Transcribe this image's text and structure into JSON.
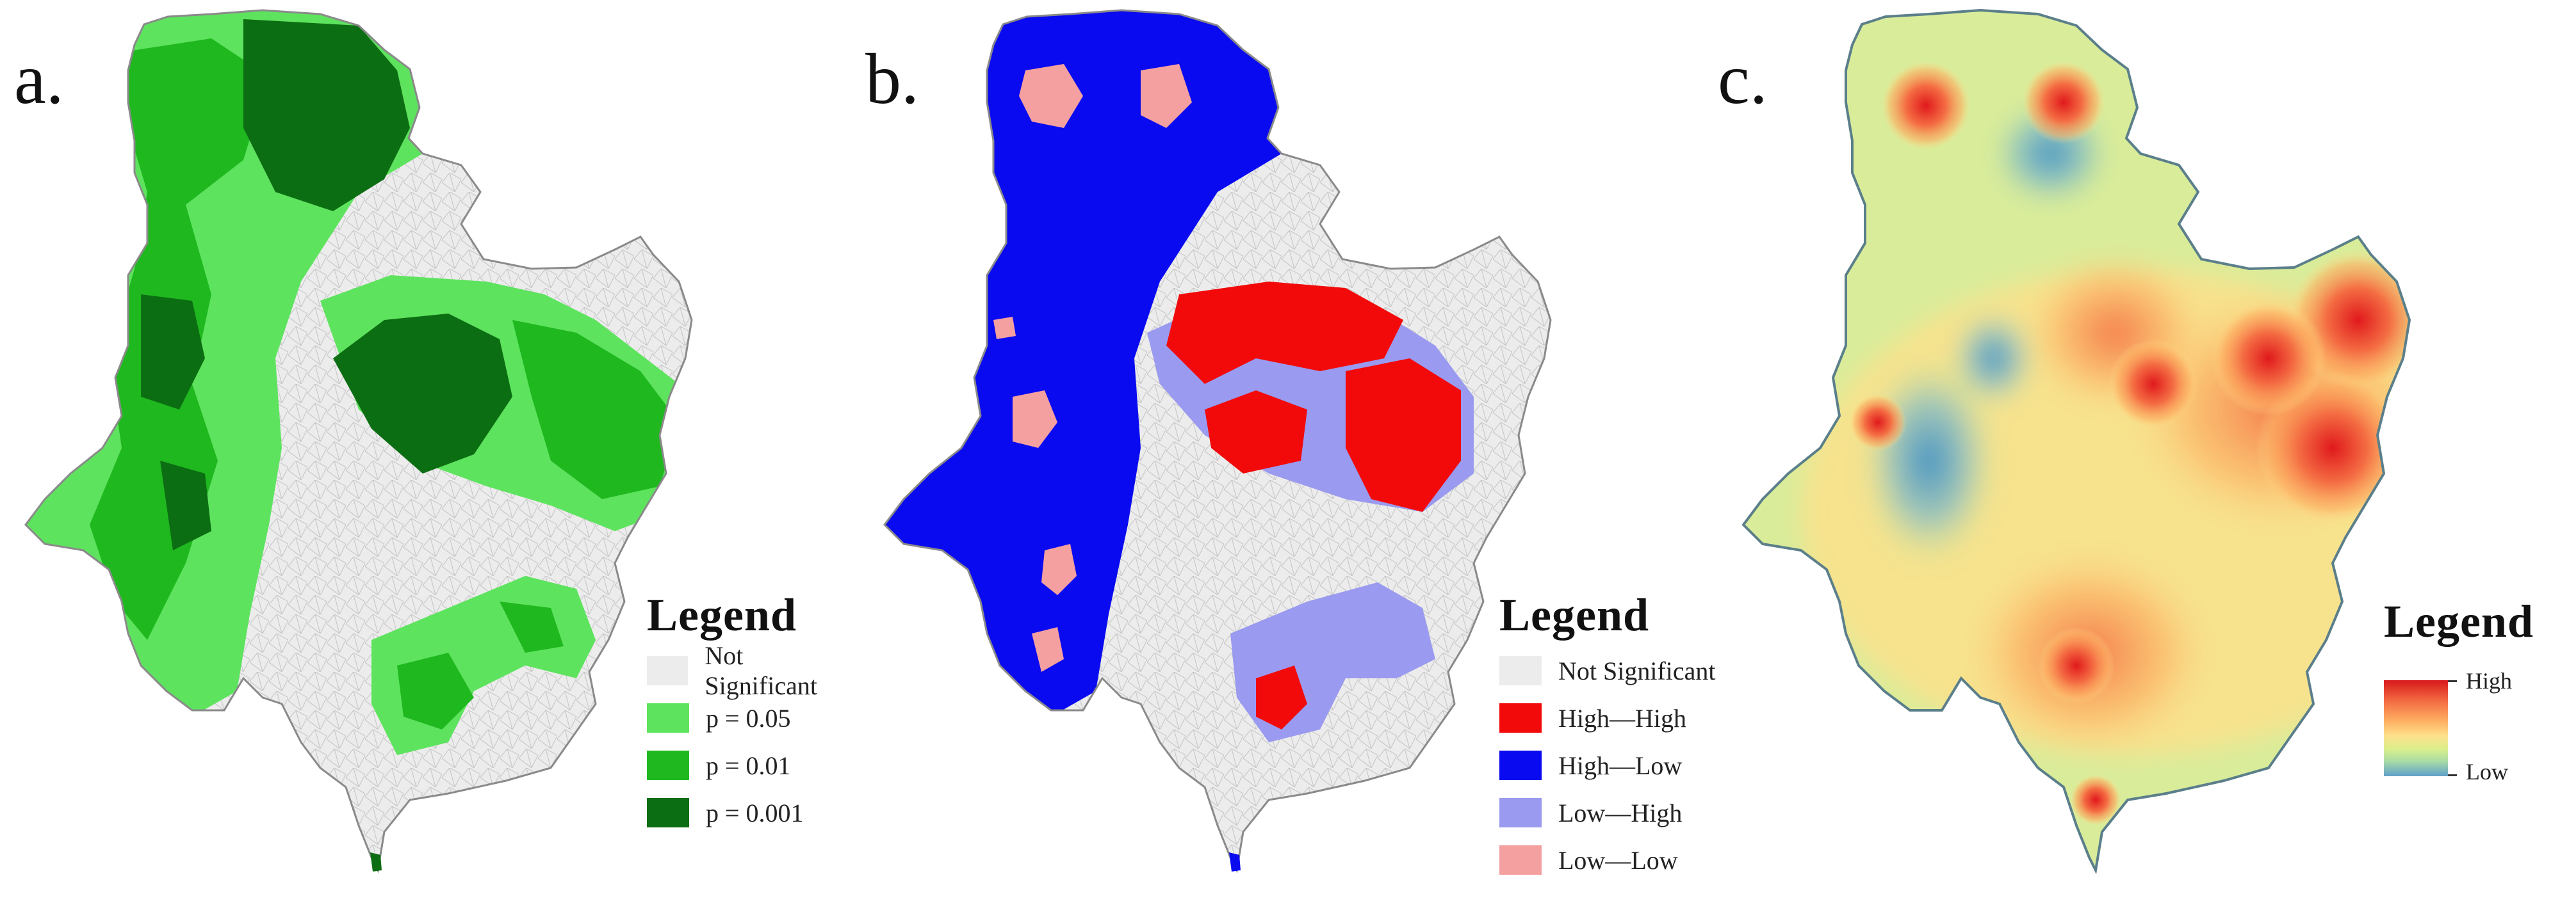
{
  "panels": {
    "a": {
      "letter": "a.",
      "legend_title": "Legend",
      "legend_items": [
        {
          "label": "Not Significant",
          "color": "#ececec"
        },
        {
          "label": "p = 0.05",
          "color": "#5ee35e"
        },
        {
          "label": "p = 0.01",
          "color": "#1fb81f"
        },
        {
          "label": "p = 0.001",
          "color": "#0c6e12"
        }
      ]
    },
    "b": {
      "letter": "b.",
      "legend_title": "Legend",
      "legend_items": [
        {
          "label": "Not Significant",
          "color": "#ececec"
        },
        {
          "label": "High—High",
          "color": "#f20a0a"
        },
        {
          "label": "High—Low",
          "color": "#0a0af0"
        },
        {
          "label": "Low—High",
          "color": "#9a9af0"
        },
        {
          "label": "Low—Low",
          "color": "#f5a0a0"
        }
      ]
    },
    "c": {
      "letter": "c.",
      "legend_title": "Legend",
      "ramp_high": "High",
      "ramp_low": "Low",
      "ramp_colors": [
        "#d7191c",
        "#fdae61",
        "#fee08b",
        "#abdda4",
        "#5e9fca"
      ]
    }
  }
}
